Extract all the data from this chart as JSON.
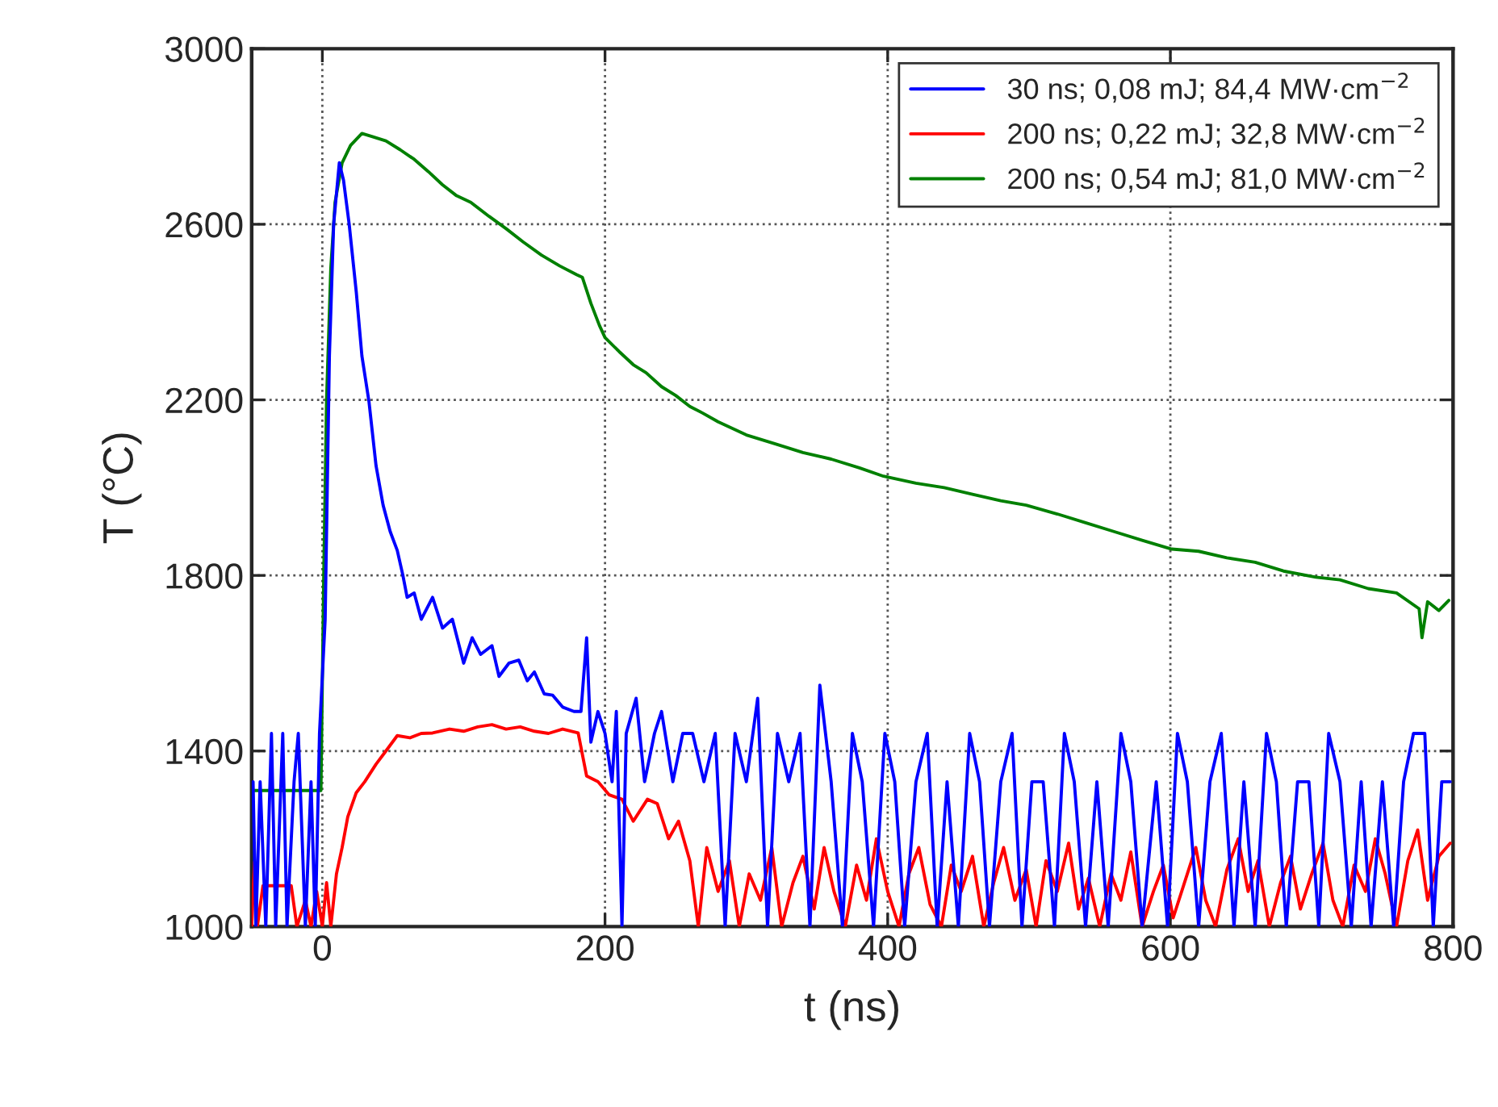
{
  "chart_data": {
    "type": "line",
    "xlabel": "t (ns)",
    "ylabel": "T (°C)",
    "xlim": [
      -50,
      800
    ],
    "ylim": [
      1000,
      3000
    ],
    "xticks": [
      0,
      200,
      400,
      600,
      800
    ],
    "yticks": [
      1000,
      1400,
      1800,
      2200,
      2600,
      3000
    ],
    "grid": true,
    "legend": "top right",
    "line_style": "solid",
    "marker": "none",
    "series": [
      {
        "name": "30 ns; 0,08 mJ; 84,4 MW·cm$^{−2}$",
        "color": "#0000ff",
        "x": [
          -49,
          -47,
          -44,
          -40,
          -36,
          -33,
          -28,
          -25,
          -20,
          -17,
          -12,
          -8,
          -5,
          -2,
          2,
          5,
          8,
          12,
          15,
          19,
          24,
          28,
          33,
          38,
          43,
          48,
          53,
          57,
          60,
          65,
          70,
          78,
          85,
          92,
          100,
          106,
          112,
          120,
          125,
          132,
          139,
          145,
          150,
          157,
          163,
          170,
          178,
          183,
          187,
          190,
          195,
          200,
          205,
          208,
          212,
          215,
          222,
          228,
          235,
          240,
          248,
          255,
          262,
          270,
          278,
          285,
          292,
          300,
          308,
          315,
          322,
          330,
          338,
          345,
          352,
          360,
          368,
          375,
          382,
          390,
          398,
          405,
          412,
          420,
          428,
          435,
          442,
          450,
          458,
          465,
          472,
          480,
          488,
          495,
          502,
          510,
          518,
          525,
          532,
          540,
          548,
          556,
          565,
          572,
          580,
          590,
          598,
          605,
          612,
          620,
          628,
          636,
          645,
          652,
          660,
          668,
          675,
          682,
          690,
          698,
          705,
          712,
          720,
          728,
          735,
          742,
          750,
          758,
          765,
          772,
          780,
          786,
          792,
          798
        ],
        "values": [
          1330,
          1000,
          1330,
          1000,
          1440,
          1000,
          1440,
          1000,
          1330,
          1440,
          1000,
          1330,
          1000,
          1440,
          1700,
          2300,
          2600,
          2740,
          2700,
          2600,
          2446,
          2300,
          2196,
          2050,
          1960,
          1900,
          1857,
          1800,
          1750,
          1760,
          1700,
          1750,
          1680,
          1700,
          1600,
          1658,
          1620,
          1640,
          1570,
          1600,
          1607,
          1560,
          1580,
          1530,
          1527,
          1500,
          1490,
          1490,
          1658,
          1420,
          1490,
          1440,
          1330,
          1490,
          1000,
          1440,
          1520,
          1330,
          1440,
          1490,
          1330,
          1440,
          1440,
          1330,
          1440,
          1000,
          1440,
          1330,
          1520,
          1000,
          1440,
          1330,
          1440,
          1000,
          1550,
          1330,
          1000,
          1440,
          1330,
          1000,
          1440,
          1330,
          1000,
          1330,
          1440,
          1000,
          1330,
          1000,
          1440,
          1330,
          1000,
          1330,
          1440,
          1000,
          1330,
          1330,
          1000,
          1440,
          1330,
          1000,
          1330,
          1000,
          1440,
          1330,
          1000,
          1330,
          1000,
          1440,
          1330,
          1000,
          1330,
          1440,
          1000,
          1330,
          1000,
          1440,
          1330,
          1000,
          1330,
          1330,
          1000,
          1440,
          1330,
          1000,
          1330,
          1000,
          1330,
          1000,
          1330,
          1440,
          1440,
          1000,
          1330,
          1330
        ]
      },
      {
        "name": "200 ns; 0,22 mJ; 32,8 MW·cm$^{−2}$",
        "color": "#ff0000",
        "x": [
          -50,
          -48,
          -46,
          -42,
          -22,
          -18,
          -12,
          -8,
          -4,
          0,
          3,
          6,
          10,
          14,
          18,
          24,
          30,
          38,
          45,
          53,
          62,
          70,
          78,
          90,
          100,
          110,
          120,
          130,
          140,
          150,
          160,
          170,
          181,
          187,
          195,
          203,
          212,
          220,
          230,
          237,
          245,
          252,
          260,
          266,
          272,
          280,
          288,
          295,
          302,
          310,
          318,
          325,
          333,
          340,
          348,
          355,
          362,
          370,
          378,
          385,
          392,
          400,
          408,
          415,
          422,
          430,
          438,
          445,
          452,
          460,
          468,
          475,
          482,
          490,
          498,
          505,
          512,
          520,
          528,
          535,
          542,
          550,
          558,
          565,
          572,
          580,
          588,
          595,
          602,
          610,
          618,
          625,
          632,
          640,
          648,
          655,
          662,
          670,
          678,
          685,
          692,
          700,
          708,
          715,
          722,
          730,
          738,
          745,
          752,
          760,
          768,
          775,
          782,
          790,
          798
        ],
        "values": [
          1000,
          1147,
          1000,
          1093,
          1093,
          1000,
          1060,
          1000,
          1080,
          1000,
          1100,
          1000,
          1120,
          1180,
          1250,
          1305,
          1330,
          1370,
          1400,
          1435,
          1430,
          1440,
          1441,
          1450,
          1445,
          1455,
          1460,
          1450,
          1455,
          1445,
          1440,
          1450,
          1441,
          1343,
          1330,
          1300,
          1290,
          1240,
          1290,
          1280,
          1200,
          1240,
          1150,
          1000,
          1180,
          1080,
          1150,
          1000,
          1120,
          1060,
          1180,
          1000,
          1100,
          1160,
          1040,
          1180,
          1080,
          1000,
          1140,
          1060,
          1200,
          1080,
          1000,
          1120,
          1180,
          1050,
          1000,
          1140,
          1080,
          1160,
          1000,
          1100,
          1180,
          1060,
          1130,
          1000,
          1150,
          1080,
          1190,
          1040,
          1110,
          1000,
          1120,
          1060,
          1170,
          1000,
          1080,
          1140,
          1020,
          1100,
          1180,
          1060,
          1000,
          1130,
          1200,
          1080,
          1150,
          1000,
          1100,
          1160,
          1040,
          1120,
          1190,
          1060,
          1000,
          1140,
          1080,
          1200,
          1120,
          1000,
          1150,
          1220,
          1060,
          1160,
          1190
        ]
      },
      {
        "name": "200 ns; 0,54 mJ; 81,0 MW·cm$^{−2}$",
        "color": "#008000",
        "x": [
          -50,
          -1,
          1,
          3,
          6,
          9,
          14,
          20,
          28,
          35,
          45,
          55,
          65,
          75,
          85,
          95,
          105,
          118,
          130,
          142,
          155,
          168,
          180,
          184,
          190,
          196,
          200,
          210,
          220,
          229,
          240,
          250,
          260,
          269,
          280,
          300,
          320,
          340,
          360,
          380,
          397,
          420,
          440,
          460,
          480,
          498,
          520,
          540,
          560,
          580,
          601,
          620,
          640,
          660,
          680,
          703,
          720,
          740,
          760,
          776,
          778,
          782,
          790,
          797
        ],
        "values": [
          1310,
          1310,
          1800,
          2200,
          2500,
          2650,
          2740,
          2780,
          2807,
          2800,
          2790,
          2770,
          2748,
          2720,
          2690,
          2665,
          2650,
          2618,
          2590,
          2560,
          2530,
          2505,
          2485,
          2479,
          2420,
          2370,
          2342,
          2310,
          2280,
          2262,
          2230,
          2210,
          2185,
          2170,
          2150,
          2120,
          2100,
          2080,
          2065,
          2045,
          2026,
          2010,
          2000,
          1985,
          1970,
          1960,
          1940,
          1920,
          1900,
          1880,
          1860,
          1855,
          1840,
          1830,
          1810,
          1796,
          1790,
          1770,
          1760,
          1724,
          1658,
          1740,
          1720,
          1743
        ]
      }
    ]
  }
}
